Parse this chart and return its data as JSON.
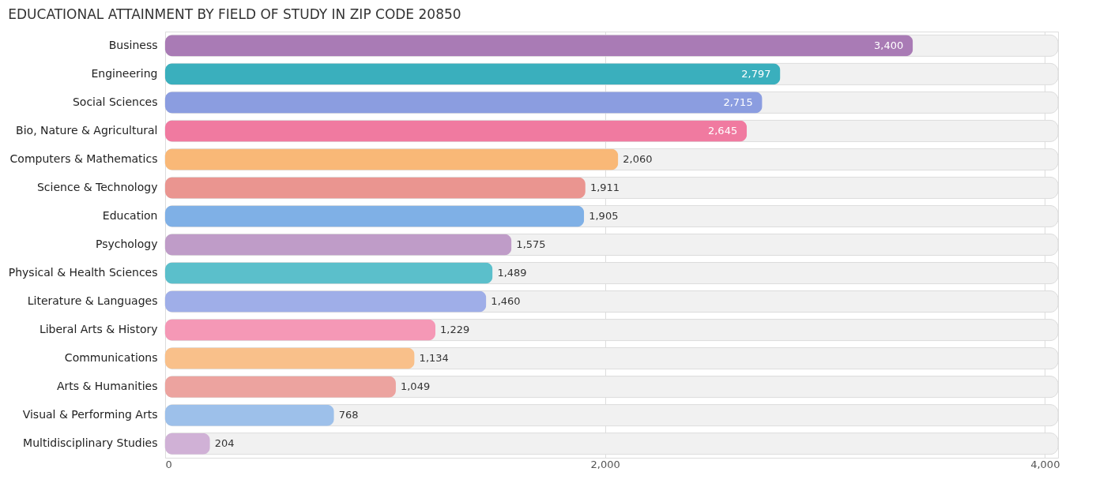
{
  "chart_data": {
    "type": "bar",
    "orientation": "horizontal",
    "title": "EDUCATIONAL ATTAINMENT BY FIELD OF STUDY IN ZIP CODE 20850",
    "categories": [
      "Business",
      "Engineering",
      "Social Sciences",
      "Bio, Nature & Agricultural",
      "Computers & Mathematics",
      "Science & Technology",
      "Education",
      "Psychology",
      "Physical & Health Sciences",
      "Literature & Languages",
      "Liberal Arts & History",
      "Communications",
      "Arts & Humanities",
      "Visual & Performing Arts",
      "Multidisciplinary Studies"
    ],
    "values": [
      3400,
      2797,
      2715,
      2645,
      2060,
      1911,
      1905,
      1575,
      1489,
      1460,
      1229,
      1134,
      1049,
      768,
      204
    ],
    "colors": [
      "#a97bb5",
      "#3aafbd",
      "#8b9de0",
      "#f07aa0",
      "#f9b877",
      "#ea9590",
      "#7fb0e6",
      "#bf9cc8",
      "#5bbfcb",
      "#9faee8",
      "#f598b6",
      "#f9c08a",
      "#eca39f",
      "#9dc0ea",
      "#d0b1d6"
    ],
    "value_labels": [
      "3,400",
      "2,797",
      "2,715",
      "2,645",
      "2,060",
      "1,911",
      "1,905",
      "1,575",
      "1,489",
      "1,460",
      "1,229",
      "1,134",
      "1,049",
      "768",
      "204"
    ],
    "xlim": [
      0,
      4060
    ],
    "xticks": [
      0,
      {
        "value": 2000,
        "label": "2,000"
      },
      {
        "value": 4000,
        "label": "4,000"
      }
    ],
    "grid": "x"
  }
}
